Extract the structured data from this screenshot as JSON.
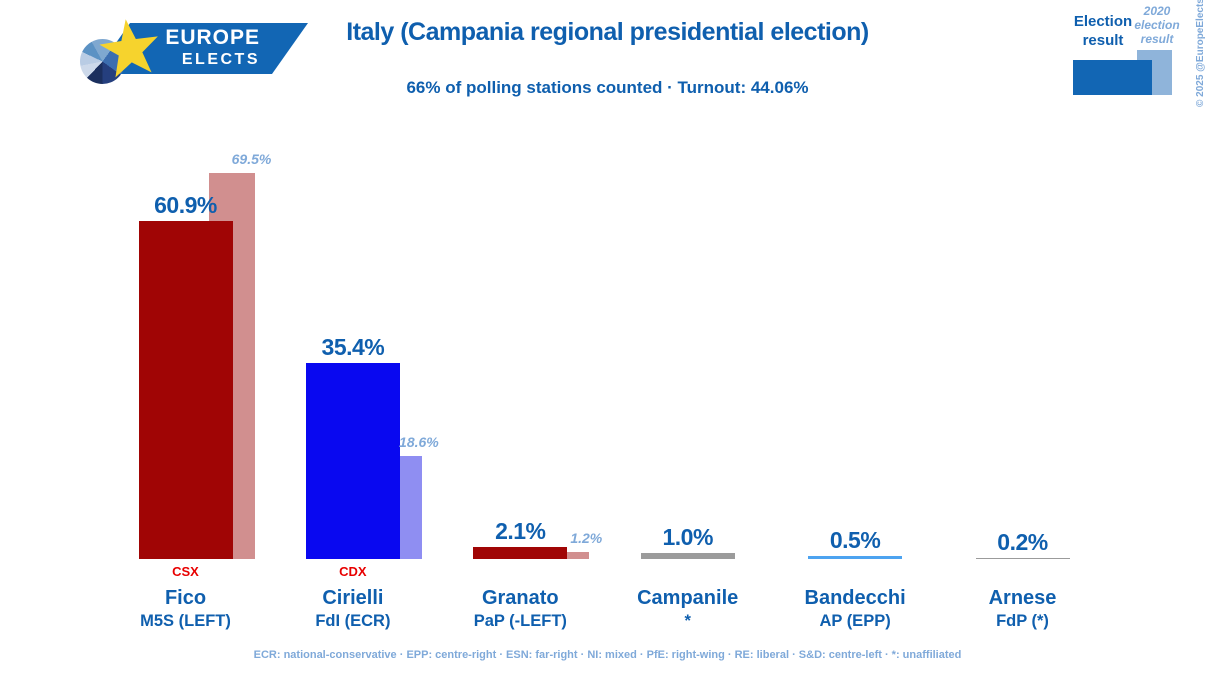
{
  "logo": {
    "line1": "EUROPE",
    "line2": "ELECTS"
  },
  "header": {
    "title": "Italy (Campania regional presidential election)",
    "subtitle": "66% of polling stations counted · Turnout: 44.06%"
  },
  "legend": {
    "current_label": "Election result",
    "previous_label": "2020 election result",
    "current_color": "#1266b4",
    "previous_color": "#8fb4da",
    "copyright": "© 2025 @EuropeElects"
  },
  "chart_data": {
    "type": "bar",
    "title": "Italy (Campania regional presidential election)",
    "unit": "%",
    "ylim": [
      0,
      77
    ],
    "grid": false,
    "series_labels": [
      "Election result",
      "2020 election result"
    ],
    "candidates": [
      {
        "name": "Fico",
        "party": "M5S (LEFT)",
        "coalition": "CSX",
        "value": 60.9,
        "value_label": "60.9%",
        "previous": 69.5,
        "previous_label": "69.5%",
        "color": "#a00505",
        "previous_color": "#d18f8f"
      },
      {
        "name": "Cirielli",
        "party": "FdI (ECR)",
        "coalition": "CDX",
        "value": 35.4,
        "value_label": "35.4%",
        "previous": 18.6,
        "previous_label": "18.6%",
        "color": "#0908f0",
        "previous_color": "#8f8ef2"
      },
      {
        "name": "Granato",
        "party": "PaP (-LEFT)",
        "value": 2.1,
        "value_label": "2.1%",
        "previous": 1.2,
        "previous_label": "1.2%",
        "color": "#a00505",
        "previous_color": "#d18f8f"
      },
      {
        "name": "Campanile",
        "party": "*",
        "value": 1.0,
        "value_label": "1.0%",
        "color": "#9b9b9b"
      },
      {
        "name": "Bandecchi",
        "party": "AP (EPP)",
        "value": 0.5,
        "value_label": "0.5%",
        "color": "#4da3f0"
      },
      {
        "name": "Arnese",
        "party": "FdP (*)",
        "value": 0.2,
        "value_label": "0.2%",
        "color": "#9b9b9b"
      }
    ]
  },
  "footer": {
    "party_key": "ECR: national-conservative · EPP: centre-right · ESN: far-right · NI: mixed · PfE: right-wing · RE: liberal · S&D: centre-left · *: unaffiliated"
  }
}
